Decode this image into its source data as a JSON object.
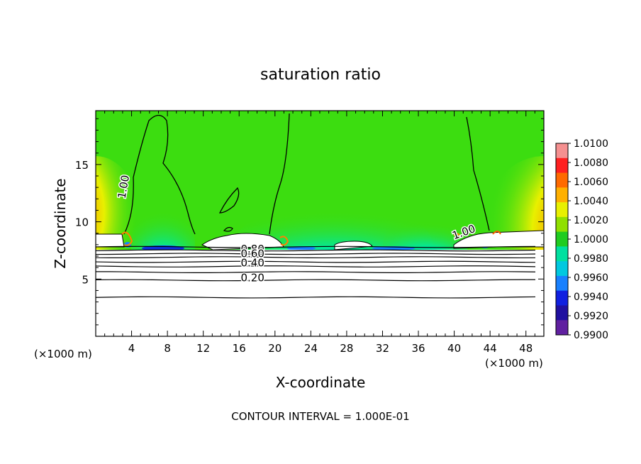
{
  "chart_data": {
    "type": "heatmap",
    "title": "saturation ratio",
    "xlabel": "X-coordinate",
    "ylabel": "Z-coordinate",
    "x_unit": "(×1000 m)",
    "x_unit_right": "(×1000 m)",
    "xlim": [
      0,
      50
    ],
    "ylim": [
      0,
      19.7
    ],
    "xticks": [
      4,
      8,
      12,
      16,
      20,
      24,
      28,
      32,
      36,
      40,
      44,
      48
    ],
    "yticks": [
      5,
      10,
      15
    ],
    "footer": "CONTOUR INTERVAL = 1.000E-01",
    "colorbar": {
      "labels": [
        "1.0100",
        "1.0080",
        "1.0060",
        "1.0040",
        "1.0020",
        "1.0000",
        "0.9980",
        "0.9960",
        "0.9940",
        "0.9920",
        "0.9900"
      ],
      "colors": [
        "#f59090",
        "#ff2020",
        "#ff6a00",
        "#ffb000",
        "#e8f000",
        "#90e000",
        "#20cc20",
        "#00e0a0",
        "#00c8e0",
        "#1880ff",
        "#1020e0",
        "#2010a0",
        "#6020a0"
      ]
    },
    "background_value": 1.0,
    "contour_labels": [
      {
        "text": "1.00",
        "x": 3.5,
        "y": 13.0
      },
      {
        "text": "1.00",
        "x": 41.2,
        "y": 8.8
      },
      {
        "text": "0.80",
        "x": 17.5,
        "y": 7.3
      },
      {
        "text": "0.60",
        "x": 17.5,
        "y": 6.9
      },
      {
        "text": "0.40",
        "x": 17.5,
        "y": 6.1
      },
      {
        "text": "0.20",
        "x": 17.5,
        "y": 4.8
      }
    ],
    "lower_contours_z": [
      3.4,
      4.9,
      5.6,
      6.1,
      6.5,
      6.9,
      7.2,
      7.5,
      7.8
    ],
    "cloud_base_z": 7.8
  }
}
